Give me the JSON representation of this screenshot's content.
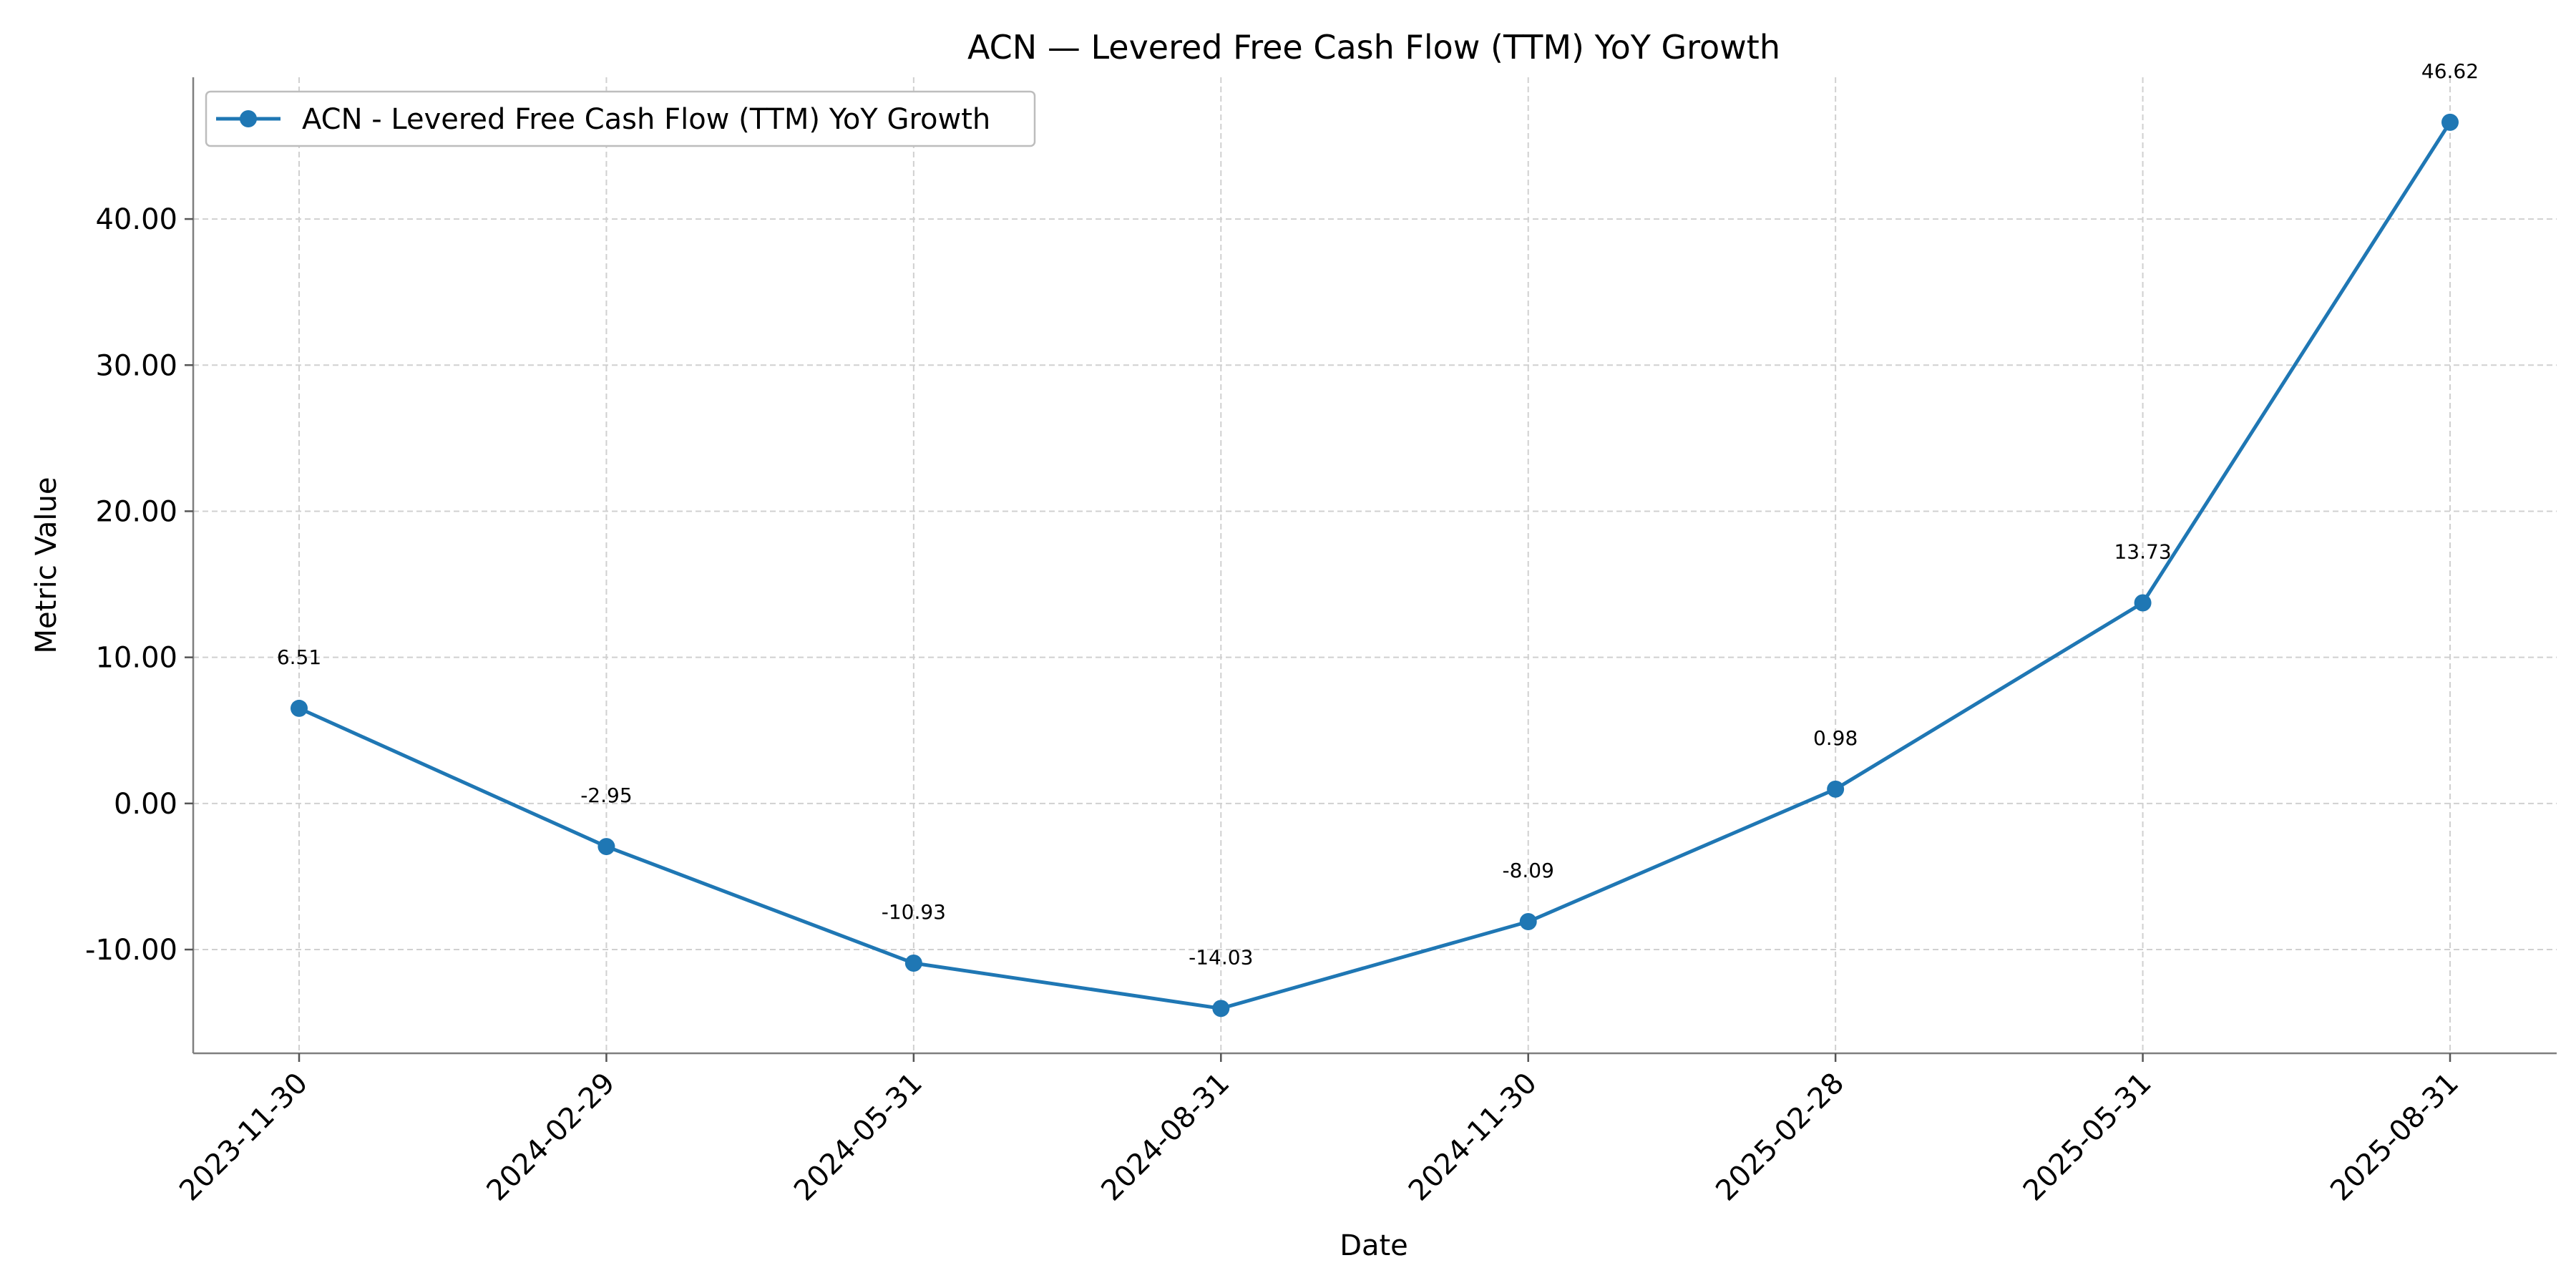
{
  "chart_data": {
    "type": "line",
    "title": "ACN — Levered Free Cash Flow (TTM) YoY Growth",
    "xlabel": "Date",
    "ylabel": "Metric Value",
    "categories": [
      "2023-11-30",
      "2024-02-29",
      "2024-05-31",
      "2024-08-31",
      "2024-11-30",
      "2025-02-28",
      "2025-05-31",
      "2025-08-31"
    ],
    "series": [
      {
        "name": "ACN - Levered Free Cash Flow (TTM) YoY Growth",
        "color": "#1f77b4",
        "values": [
          6.51,
          -2.95,
          -10.93,
          -14.03,
          -8.09,
          0.98,
          13.73,
          46.62
        ],
        "labels": [
          "6.51",
          "-2.95",
          "-10.93",
          "-14.03",
          "-8.09",
          "0.98",
          "13.73",
          "46.62"
        ]
      }
    ],
    "ylim": [
      -17.1,
      49.7
    ],
    "yticks": [
      -10,
      0,
      10,
      20,
      30,
      40
    ],
    "ytick_labels": [
      "-10.00",
      "0.00",
      "10.00",
      "20.00",
      "30.00",
      "40.00"
    ],
    "grid": true,
    "legend_position": "top-left"
  }
}
